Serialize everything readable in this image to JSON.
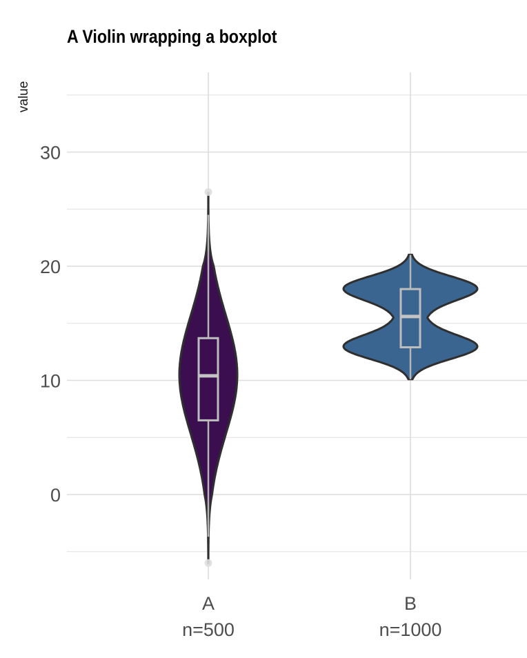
{
  "chart_data": {
    "type": "violin",
    "title": "A Violin wrapping a boxplot",
    "xlabel": "",
    "ylabel": "value",
    "ylim": [
      -7.5,
      35
    ],
    "yticks": [
      0,
      10,
      20,
      30
    ],
    "grid": true,
    "categories": [
      "A",
      "B"
    ],
    "category_labels": [
      "n=500",
      "n=1000"
    ],
    "groups": [
      {
        "name": "A",
        "n_label": "n=500",
        "color": "#3b0f4f",
        "min": -6,
        "max": 26.5,
        "box": {
          "q1": 6.5,
          "median": 10.4,
          "q3": 13.7,
          "whisker_low": -3.7,
          "whisker_high": 24.5
        },
        "outliers": [
          -6,
          26.5
        ]
      },
      {
        "name": "B",
        "n_label": "n=1000",
        "color": "#3a6591",
        "min": 10.1,
        "max": 21,
        "box": {
          "q1": 12.9,
          "median": 15.6,
          "q3": 18,
          "whisker_low": 10.1,
          "whisker_high": 21
        },
        "outliers": []
      }
    ]
  }
}
